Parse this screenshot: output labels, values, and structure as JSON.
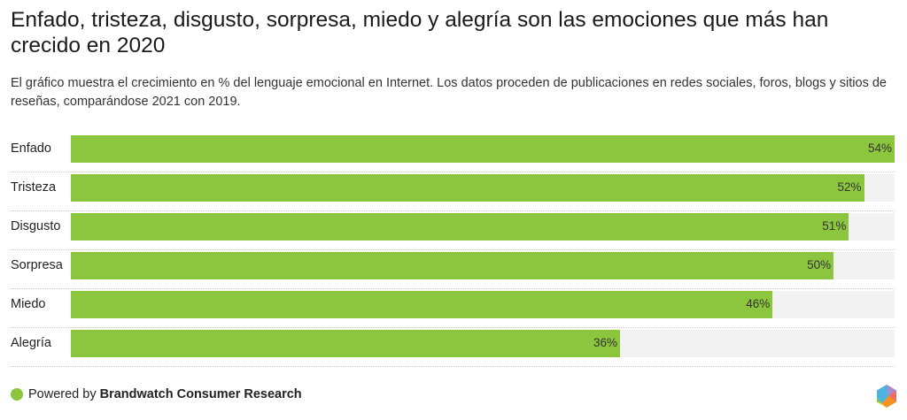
{
  "chart_data": {
    "type": "bar",
    "orientation": "horizontal",
    "title": "Enfado, tristeza, disgusto, sorpresa, miedo y alegría son las emociones que más han crecido en 2020",
    "subtitle": "El gráfico muestra el crecimiento en % del lenguaje emocional en Internet. Los datos proceden de publicaciones en redes sociales, foros, blogs y sitios de reseñas, comparándose 2021 con 2019.",
    "categories": [
      "Enfado",
      "Tristeza",
      "Disgusto",
      "Sorpresa",
      "Miedo",
      "Alegría"
    ],
    "values": [
      54,
      52,
      51,
      50,
      46,
      36
    ],
    "value_labels": [
      "54%",
      "52%",
      "51%",
      "50%",
      "46%",
      "36%"
    ],
    "xlim": [
      0,
      54
    ],
    "bar_color": "#8cc63f",
    "track_color": "#f2f2f2"
  },
  "footer": {
    "prefix": "Powered by ",
    "brand": "Brandwatch Consumer Research"
  }
}
